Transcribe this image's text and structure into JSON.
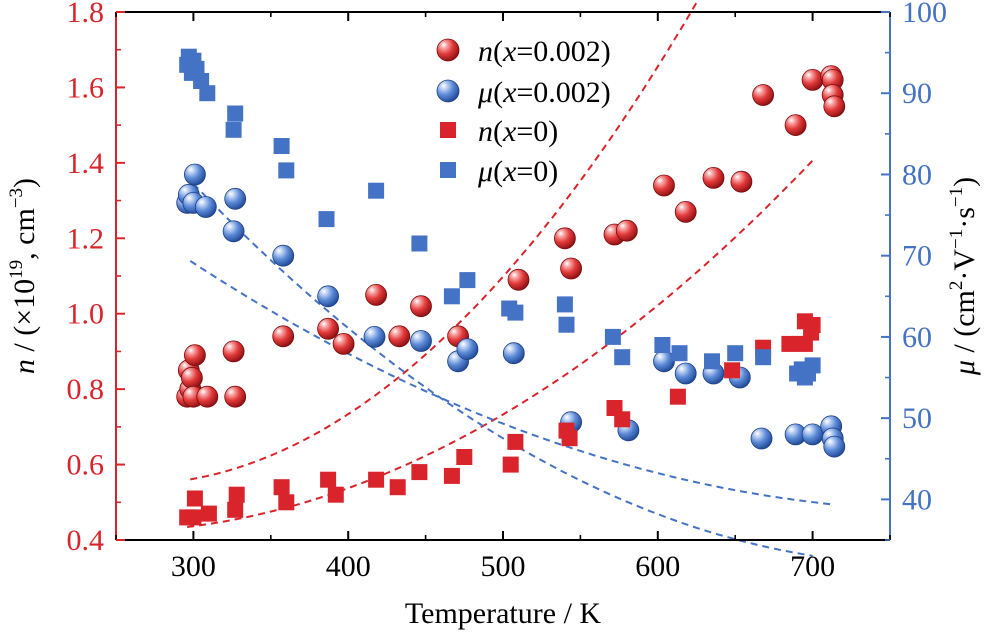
{
  "chart_data": {
    "type": "scatter",
    "xlabel": "Temperature / K",
    "ylabel_left_parts": [
      "n",
      " / (×10",
      "19",
      ", cm",
      "−3",
      ")"
    ],
    "ylabel_right_parts": [
      "μ",
      " / (cm",
      "2",
      "·V",
      "−1",
      "·s",
      "−1",
      ")"
    ],
    "xlim": [
      250,
      750
    ],
    "ylim_left": [
      0.4,
      1.8
    ],
    "ylim_right": [
      35,
      100
    ],
    "x_ticks": [
      300,
      400,
      500,
      600,
      700
    ],
    "x_tick_labels": [
      "300",
      "400",
      "500",
      "600",
      "700"
    ],
    "y_left_ticks": [
      0.4,
      0.6,
      0.8,
      1.0,
      1.2,
      1.4,
      1.6,
      1.8
    ],
    "y_left_tick_labels": [
      "0.4",
      "0.6",
      "0.8",
      "1.0",
      "1.2",
      "1.4",
      "1.6",
      "1.8"
    ],
    "y_right_ticks": [
      40,
      50,
      60,
      70,
      80,
      90,
      100
    ],
    "y_right_tick_labels": [
      "40",
      "50",
      "60",
      "70",
      "80",
      "90",
      "100"
    ],
    "legend_position": "top-center",
    "grid": false,
    "colors": {
      "red": "#d9242b",
      "blue": "#4472c4",
      "left_axis": "#d9242b",
      "right_axis": "#4472c4",
      "frame": "#000000"
    },
    "series": [
      {
        "name": "n(x=0.002)",
        "legend": {
          "var": "n",
          "open": "(",
          "xvar": "x",
          "rest": "=0.002)"
        },
        "axis": "left",
        "marker": "sphere",
        "color": "red",
        "x": [
          296,
          297,
          298,
          299,
          300,
          301,
          309,
          326,
          327,
          358,
          387,
          397,
          418,
          433,
          447,
          471,
          510,
          540,
          544,
          572,
          580,
          604,
          618,
          636,
          654,
          668,
          689,
          700,
          712,
          713,
          713,
          714
        ],
        "y": [
          0.78,
          0.85,
          0.8,
          0.83,
          0.78,
          0.89,
          0.78,
          0.9,
          0.78,
          0.94,
          0.96,
          0.92,
          1.05,
          0.94,
          1.02,
          0.94,
          1.09,
          1.2,
          1.12,
          1.21,
          1.22,
          1.34,
          1.27,
          1.36,
          1.35,
          1.58,
          1.5,
          1.62,
          1.63,
          1.62,
          1.58,
          1.55
        ]
      },
      {
        "name": "μ(x=0.002)",
        "legend": {
          "var": "μ",
          "open": "(",
          "xvar": "x",
          "rest": "=0.002)"
        },
        "axis": "right",
        "marker": "sphere",
        "color": "blue",
        "x": [
          296,
          297,
          300,
          301,
          308,
          326,
          327,
          358,
          387,
          417,
          447,
          471,
          477,
          507,
          544,
          581,
          604,
          618,
          636,
          653,
          667,
          689,
          700,
          712,
          713,
          714
        ],
        "y": [
          76.5,
          77.5,
          76.5,
          80.0,
          76.0,
          73.0,
          77.0,
          70.0,
          65.0,
          60.0,
          59.5,
          57.0,
          58.5,
          58.0,
          49.5,
          48.5,
          57.0,
          55.5,
          55.5,
          55.0,
          47.5,
          48.0,
          48.0,
          49.0,
          47.5,
          46.5
        ]
      },
      {
        "name": "n(x=0)",
        "legend": {
          "var": "n",
          "open": "(",
          "xvar": "x",
          "rest": "=0)"
        },
        "axis": "left",
        "marker": "square",
        "color": "red",
        "x": [
          296,
          300,
          301,
          310,
          327,
          328,
          357,
          360,
          387,
          392,
          418,
          432,
          446,
          467,
          475,
          505,
          508,
          541,
          543,
          572,
          577,
          613,
          648,
          668,
          685,
          695,
          695,
          699,
          700
        ],
        "y": [
          0.46,
          0.46,
          0.51,
          0.47,
          0.48,
          0.52,
          0.54,
          0.5,
          0.56,
          0.52,
          0.56,
          0.54,
          0.58,
          0.57,
          0.62,
          0.6,
          0.66,
          0.69,
          0.67,
          0.75,
          0.72,
          0.78,
          0.85,
          0.91,
          0.92,
          0.92,
          0.98,
          0.95,
          0.97
        ]
      },
      {
        "name": "μ(x=0)",
        "legend": {
          "var": "μ",
          "open": "(",
          "xvar": "x",
          "rest": "=0)"
        },
        "axis": "right",
        "marker": "square",
        "color": "blue",
        "x": [
          296,
          297,
          299,
          300,
          302,
          305,
          309,
          326,
          327,
          357,
          360,
          386,
          418,
          446,
          467,
          477,
          504,
          508,
          540,
          541,
          571,
          577,
          603,
          614,
          635,
          650,
          668,
          690,
          693,
          695,
          697,
          700
        ],
        "y": [
          93.5,
          94.5,
          92.5,
          94.0,
          93.0,
          91.5,
          90.0,
          85.5,
          87.5,
          83.5,
          80.5,
          74.5,
          78.0,
          71.5,
          65.0,
          67.0,
          63.5,
          63.0,
          64.0,
          61.5,
          60.0,
          57.5,
          59.0,
          58.0,
          57.0,
          58.0,
          57.5,
          55.5,
          56.0,
          55.0,
          55.5,
          56.5
        ]
      }
    ],
    "fits": [
      {
        "series": "n(x=0.002)",
        "axis": "left",
        "color": "red",
        "x_range": [
          298,
          715
        ],
        "coef": [
          1.2049,
          -0.005035,
          9.643e-06
        ]
      },
      {
        "series": "n(x=0)",
        "axis": "left",
        "color": "red",
        "x_range": [
          296,
          700
        ],
        "coef": [
          0.7004,
          -0.002295,
          4.719e-06
        ]
      },
      {
        "series": "μ(x=0.002)",
        "axis": "right",
        "color": "blue",
        "x_range": [
          298,
          714
        ],
        "coef": [
          117.75,
          -0.2001,
          0.0001265
        ]
      },
      {
        "series": "μ(x=0)",
        "axis": "right",
        "color": "blue",
        "x_range": [
          300,
          700
        ],
        "coef": [
          157.5,
          -0.3254,
          0.0002109
        ]
      }
    ]
  }
}
